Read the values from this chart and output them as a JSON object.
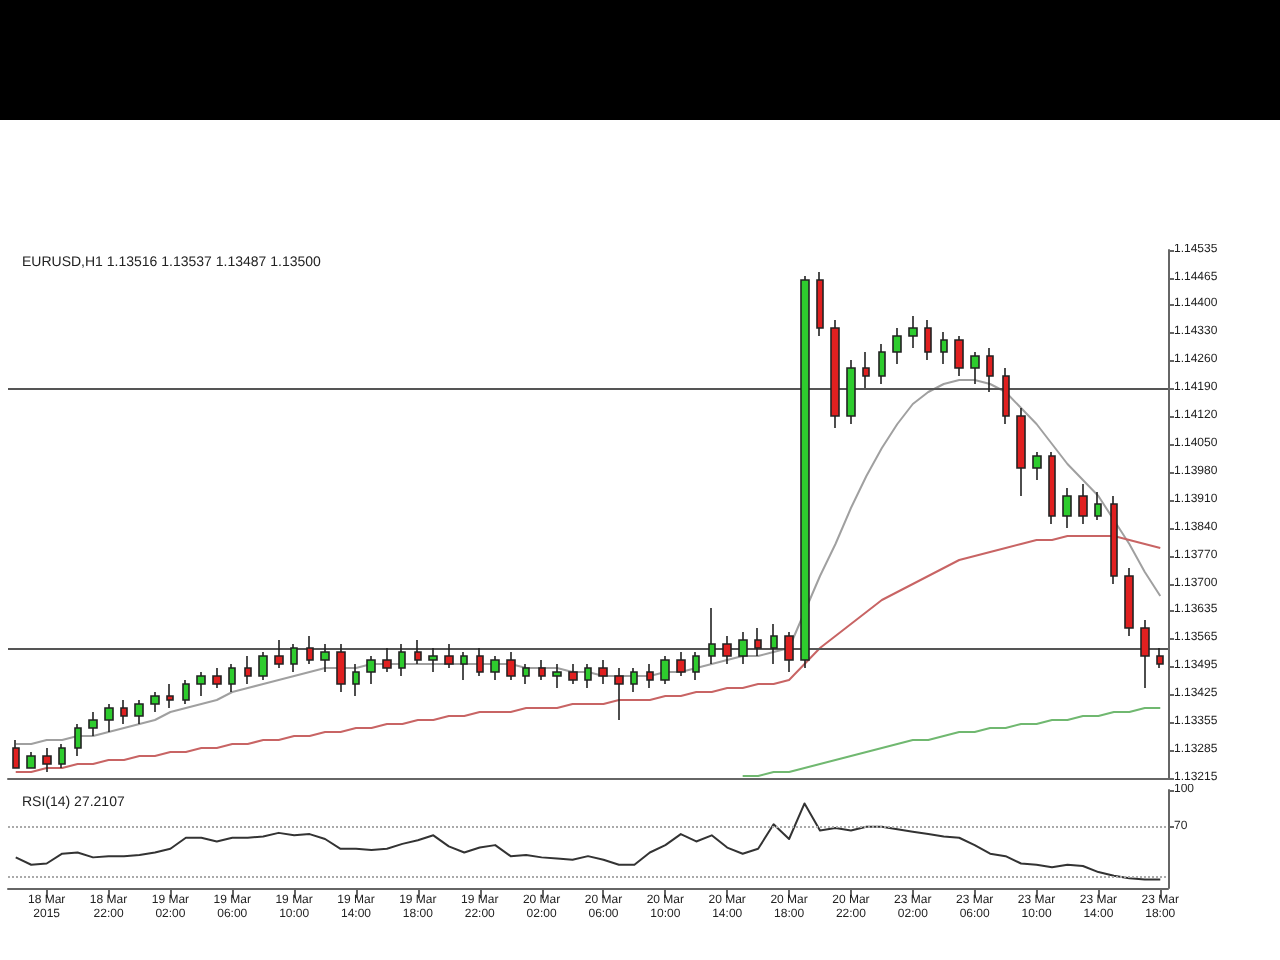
{
  "chart_data": [
    {
      "type": "candlestick",
      "title": "EURUSD,H1 1.13516 1.13537 1.13487 1.13500",
      "tick_labels": "y",
      "grid": false,
      "categories": [
        null,
        null,
        null,
        null,
        null,
        null,
        null,
        null,
        null,
        null,
        null,
        null,
        null,
        null,
        null,
        null,
        null,
        null,
        null,
        null,
        null,
        null,
        null,
        null,
        null,
        null,
        null,
        null,
        null,
        null,
        null,
        null,
        null,
        null,
        null,
        null,
        null,
        null,
        null,
        null,
        null,
        null,
        null,
        null,
        null,
        null,
        null,
        null,
        null,
        null,
        null,
        null,
        null,
        null,
        null,
        null,
        null,
        null,
        null,
        null,
        null,
        null,
        null,
        null,
        null,
        null,
        null,
        null,
        null,
        null,
        null,
        null,
        null,
        null,
        null
      ],
      "ohlc": [
        [
          1.1329,
          1.1331,
          1.1324,
          1.1324
        ],
        [
          1.1324,
          1.1328,
          1.1324,
          1.1327
        ],
        [
          1.1327,
          1.1329,
          1.1323,
          1.1325
        ],
        [
          1.1325,
          1.133,
          1.1324,
          1.1329
        ],
        [
          1.1329,
          1.1335,
          1.1327,
          1.1334
        ],
        [
          1.1334,
          1.1338,
          1.1332,
          1.1336
        ],
        [
          1.1336,
          1.134,
          1.1333,
          1.1339
        ],
        [
          1.1339,
          1.1341,
          1.1335,
          1.1337
        ],
        [
          1.1337,
          1.1341,
          1.1335,
          1.134
        ],
        [
          1.134,
          1.1343,
          1.1338,
          1.1342
        ],
        [
          1.1342,
          1.1345,
          1.1339,
          1.1341
        ],
        [
          1.1341,
          1.1346,
          1.134,
          1.1345
        ],
        [
          1.1345,
          1.1348,
          1.1342,
          1.1347
        ],
        [
          1.1347,
          1.1349,
          1.1344,
          1.1345
        ],
        [
          1.1345,
          1.135,
          1.1343,
          1.1349
        ],
        [
          1.1349,
          1.1352,
          1.1345,
          1.1347
        ],
        [
          1.1347,
          1.1353,
          1.1346,
          1.1352
        ],
        [
          1.1352,
          1.1356,
          1.1349,
          1.135
        ],
        [
          1.135,
          1.1355,
          1.1348,
          1.1354
        ],
        [
          1.1354,
          1.1357,
          1.135,
          1.1351
        ],
        [
          1.1351,
          1.1355,
          1.1348,
          1.1353
        ],
        [
          1.1353,
          1.1355,
          1.1343,
          1.1345
        ],
        [
          1.1345,
          1.135,
          1.1342,
          1.1348
        ],
        [
          1.1348,
          1.1352,
          1.1345,
          1.1351
        ],
        [
          1.1351,
          1.1354,
          1.1348,
          1.1349
        ],
        [
          1.1349,
          1.1355,
          1.1347,
          1.1353
        ],
        [
          1.1353,
          1.1356,
          1.135,
          1.1351
        ],
        [
          1.1351,
          1.1354,
          1.1348,
          1.1352
        ],
        [
          1.1352,
          1.1355,
          1.1349,
          1.135
        ],
        [
          1.135,
          1.1353,
          1.1346,
          1.1352
        ],
        [
          1.1352,
          1.1354,
          1.1347,
          1.1348
        ],
        [
          1.1348,
          1.1352,
          1.1346,
          1.1351
        ],
        [
          1.1351,
          1.1353,
          1.1346,
          1.1347
        ],
        [
          1.1347,
          1.135,
          1.1345,
          1.1349
        ],
        [
          1.1349,
          1.1351,
          1.1346,
          1.1347
        ],
        [
          1.1347,
          1.135,
          1.1344,
          1.1348
        ],
        [
          1.1348,
          1.135,
          1.1345,
          1.1346
        ],
        [
          1.1346,
          1.135,
          1.1344,
          1.1349
        ],
        [
          1.1349,
          1.1351,
          1.1345,
          1.1347
        ],
        [
          1.1347,
          1.1349,
          1.1336,
          1.1345
        ],
        [
          1.1345,
          1.1349,
          1.1343,
          1.1348
        ],
        [
          1.1348,
          1.135,
          1.1344,
          1.1346
        ],
        [
          1.1346,
          1.1352,
          1.1345,
          1.1351
        ],
        [
          1.1351,
          1.1353,
          1.1347,
          1.1348
        ],
        [
          1.1348,
          1.1353,
          1.1346,
          1.1352
        ],
        [
          1.1352,
          1.1364,
          1.135,
          1.1355
        ],
        [
          1.1355,
          1.1357,
          1.135,
          1.1352
        ],
        [
          1.1352,
          1.1358,
          1.135,
          1.1356
        ],
        [
          1.1356,
          1.1359,
          1.1352,
          1.1354
        ],
        [
          1.1354,
          1.136,
          1.135,
          1.1357
        ],
        [
          1.1357,
          1.1358,
          1.1348,
          1.1351
        ],
        [
          1.1351,
          1.1447,
          1.1349,
          1.1446
        ],
        [
          1.1446,
          1.1448,
          1.1432,
          1.1434
        ],
        [
          1.1434,
          1.1436,
          1.1409,
          1.1412
        ],
        [
          1.1412,
          1.1426,
          1.141,
          1.1424
        ],
        [
          1.1424,
          1.1428,
          1.1419,
          1.1422
        ],
        [
          1.1422,
          1.143,
          1.142,
          1.1428
        ],
        [
          1.1428,
          1.1434,
          1.1425,
          1.1432
        ],
        [
          1.1432,
          1.1437,
          1.1429,
          1.1434
        ],
        [
          1.1434,
          1.1436,
          1.1426,
          1.1428
        ],
        [
          1.1428,
          1.1433,
          1.1425,
          1.1431
        ],
        [
          1.1431,
          1.1432,
          1.1422,
          1.1424
        ],
        [
          1.1424,
          1.1428,
          1.142,
          1.1427
        ],
        [
          1.1427,
          1.1429,
          1.1418,
          1.1422
        ],
        [
          1.1422,
          1.1424,
          1.141,
          1.1412
        ],
        [
          1.1412,
          1.1414,
          1.1392,
          1.1399
        ],
        [
          1.1399,
          1.1403,
          1.1396,
          1.1402
        ],
        [
          1.1402,
          1.1403,
          1.1385,
          1.1387
        ],
        [
          1.1387,
          1.1394,
          1.1384,
          1.1392
        ],
        [
          1.1392,
          1.1395,
          1.1385,
          1.1387
        ],
        [
          1.1387,
          1.1393,
          1.1386,
          1.139
        ],
        [
          1.139,
          1.1392,
          1.137,
          1.1372
        ],
        [
          1.1372,
          1.1374,
          1.1357,
          1.1359
        ],
        [
          1.1359,
          1.1361,
          1.1344,
          1.1352
        ],
        [
          1.1352,
          1.1354,
          1.1349,
          1.135
        ]
      ],
      "series": [
        {
          "type": "line",
          "color": "#a0a0a0",
          "values": [
            1.133,
            1.133,
            1.1331,
            1.1331,
            1.1332,
            1.1332,
            1.1333,
            1.1334,
            1.1335,
            1.1336,
            1.1338,
            1.1339,
            1.134,
            1.1341,
            1.1343,
            1.1344,
            1.1345,
            1.1346,
            1.1347,
            1.1348,
            1.1349,
            1.1349,
            1.1349,
            1.135,
            1.135,
            1.135,
            1.135,
            1.135,
            1.135,
            1.135,
            1.135,
            1.135,
            1.135,
            1.1349,
            1.1349,
            1.1349,
            1.1348,
            1.1348,
            1.1347,
            1.1347,
            1.1347,
            1.1347,
            1.1348,
            1.1348,
            1.1349,
            1.135,
            1.1351,
            1.1352,
            1.1352,
            1.1353,
            1.1354,
            1.1363,
            1.1372,
            1.138,
            1.1389,
            1.1397,
            1.1404,
            1.141,
            1.1415,
            1.1418,
            1.142,
            1.1421,
            1.1421,
            1.142,
            1.1418,
            1.1414,
            1.141,
            1.1405,
            1.14,
            1.1396,
            1.1392,
            1.1386,
            1.138,
            1.1373,
            1.1367
          ]
        },
        {
          "type": "line",
          "color": "#c86464",
          "values": [
            1.1323,
            1.1323,
            1.1324,
            1.1324,
            1.1325,
            1.1325,
            1.1326,
            1.1326,
            1.1327,
            1.1327,
            1.1328,
            1.1328,
            1.1329,
            1.1329,
            1.133,
            1.133,
            1.1331,
            1.1331,
            1.1332,
            1.1332,
            1.1333,
            1.1333,
            1.1334,
            1.1334,
            1.1335,
            1.1335,
            1.1336,
            1.1336,
            1.1337,
            1.1337,
            1.1338,
            1.1338,
            1.1338,
            1.1339,
            1.1339,
            1.1339,
            1.134,
            1.134,
            1.134,
            1.1341,
            1.1341,
            1.1341,
            1.1342,
            1.1342,
            1.1343,
            1.1343,
            1.1344,
            1.1344,
            1.1345,
            1.1345,
            1.1346,
            1.135,
            1.1354,
            1.1357,
            1.136,
            1.1363,
            1.1366,
            1.1368,
            1.137,
            1.1372,
            1.1374,
            1.1376,
            1.1377,
            1.1378,
            1.1379,
            1.138,
            1.1381,
            1.1381,
            1.1382,
            1.1382,
            1.1382,
            1.1382,
            1.1381,
            1.138,
            1.1379
          ]
        },
        {
          "type": "line",
          "color": "#70b870",
          "values": [
            null,
            null,
            null,
            null,
            null,
            null,
            null,
            null,
            null,
            null,
            null,
            null,
            null,
            null,
            null,
            null,
            null,
            null,
            null,
            null,
            null,
            null,
            null,
            null,
            null,
            null,
            null,
            null,
            null,
            null,
            null,
            null,
            null,
            null,
            null,
            null,
            null,
            null,
            null,
            null,
            null,
            null,
            null,
            null,
            null,
            null,
            null,
            1.1322,
            1.1322,
            1.1323,
            1.1323,
            1.1324,
            1.1325,
            1.1326,
            1.1327,
            1.1328,
            1.1329,
            1.133,
            1.1331,
            1.1331,
            1.1332,
            1.1333,
            1.1333,
            1.1334,
            1.1334,
            1.1335,
            1.1335,
            1.1336,
            1.1336,
            1.1337,
            1.1337,
            1.1338,
            1.1338,
            1.1339,
            1.1339
          ]
        }
      ],
      "ylim": [
        1.13215,
        1.14535
      ],
      "yticks": [
        {
          "value": 1.13215,
          "label": "1.13215"
        },
        {
          "value": 1.13285,
          "label": "1.13285"
        },
        {
          "value": 1.13355,
          "label": "1.13355"
        },
        {
          "value": 1.13425,
          "label": "1.13425"
        },
        {
          "value": 1.13495,
          "label": "1.13495"
        },
        {
          "value": 1.13565,
          "label": "1.13565"
        },
        {
          "value": 1.13635,
          "label": "1.13635"
        },
        {
          "value": 1.137,
          "label": "1.13700"
        },
        {
          "value": 1.1377,
          "label": "1.13770"
        },
        {
          "value": 1.1384,
          "label": "1.13840"
        },
        {
          "value": 1.1391,
          "label": "1.13910"
        },
        {
          "value": 1.1398,
          "label": "1.13980"
        },
        {
          "value": 1.1405,
          "label": "1.14050"
        },
        {
          "value": 1.1412,
          "label": "1.14120"
        },
        {
          "value": 1.1419,
          "label": "1.14190"
        },
        {
          "value": 1.1426,
          "label": "1.14260"
        },
        {
          "value": 1.1433,
          "label": "1.14330"
        },
        {
          "value": 1.144,
          "label": "1.14400"
        },
        {
          "value": 1.14465,
          "label": "1.14465"
        },
        {
          "value": 1.14535,
          "label": "1.14535"
        }
      ],
      "ref_lines": [
        {
          "axis": "y",
          "value": 1.1419,
          "color": "#555555",
          "line_style": "solid"
        },
        {
          "axis": "y",
          "value": 1.1354,
          "color": "#555555",
          "line_style": "solid"
        }
      ]
    },
    {
      "type": "line",
      "title": "RSI(14) 27.2107",
      "grid": false,
      "categories": [
        null,
        null,
        "18 Mar 2015",
        null,
        null,
        null,
        "18 Mar 22:00",
        null,
        null,
        null,
        "19 Mar 02:00",
        null,
        null,
        null,
        "19 Mar 06:00",
        null,
        null,
        null,
        "19 Mar 10:00",
        null,
        null,
        null,
        "19 Mar 14:00",
        null,
        null,
        null,
        "19 Mar 18:00",
        null,
        null,
        null,
        "19 Mar 22:00",
        null,
        null,
        null,
        "20 Mar 02:00",
        null,
        null,
        null,
        "20 Mar 06:00",
        null,
        null,
        null,
        "20 Mar 10:00",
        null,
        null,
        null,
        "20 Mar 14:00",
        null,
        null,
        null,
        "20 Mar 18:00",
        null,
        null,
        null,
        "20 Mar 22:00",
        null,
        null,
        null,
        "23 Mar 02:00",
        null,
        null,
        null,
        "23 Mar 06:00",
        null,
        null,
        null,
        "23 Mar 10:00",
        null,
        null,
        null,
        "23 Mar 14:00",
        null,
        null,
        null,
        "23 Mar 18:00"
      ],
      "series": [
        {
          "color": "#333333",
          "values": [
            45,
            39,
            40,
            48,
            49,
            45,
            46,
            46,
            47,
            49,
            52,
            61,
            61,
            58,
            61,
            61,
            62,
            65,
            63,
            64,
            60,
            52,
            52,
            51,
            52,
            56,
            59,
            63,
            54,
            49,
            53,
            55,
            46,
            47,
            45,
            44,
            43,
            46,
            43,
            39,
            39,
            49,
            55,
            64,
            58,
            63,
            53,
            48,
            52,
            72,
            60,
            89,
            67,
            69,
            67,
            70,
            70,
            68,
            66,
            64,
            62,
            61,
            55,
            48,
            46,
            40,
            39,
            37,
            39,
            38,
            33,
            30,
            28,
            27,
            27
          ]
        }
      ],
      "ylim": [
        20,
        100
      ],
      "yticks": [
        70,
        100
      ],
      "ref_lines": [
        {
          "axis": "y",
          "value": 70,
          "color": "#aaaaaa",
          "line_style": "dotted"
        },
        {
          "axis": "y",
          "value": 30,
          "color": "#aaaaaa",
          "line_style": "dotted"
        }
      ]
    }
  ]
}
